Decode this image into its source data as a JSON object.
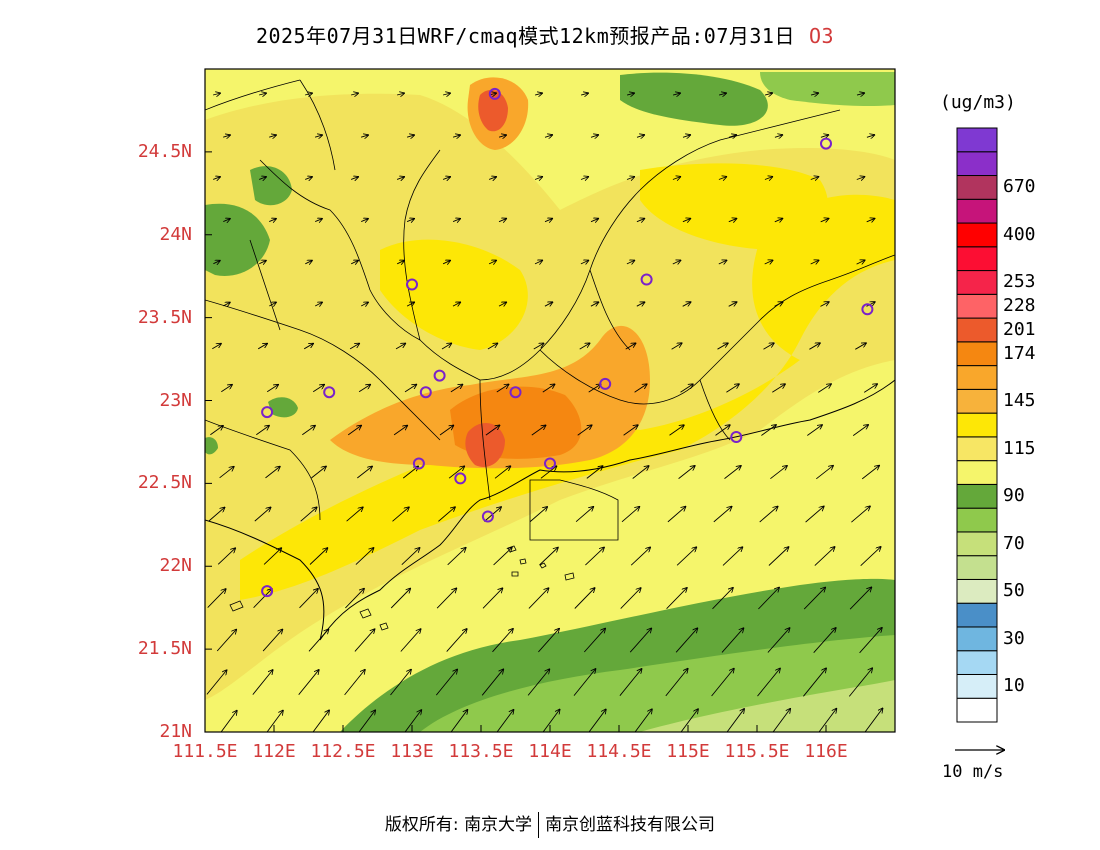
{
  "title": {
    "text": "2025年07月31日WRF/cmaq模式12km预报产品:07月31日",
    "species": "O3"
  },
  "map": {
    "lon_range": [
      111.5,
      116.5
    ],
    "lat_range": [
      21,
      25
    ],
    "lat_ticks": [
      {
        "value": 24.5,
        "label": "24.5N"
      },
      {
        "value": 24,
        "label": "24N"
      },
      {
        "value": 23.5,
        "label": "23.5N"
      },
      {
        "value": 23,
        "label": "23N"
      },
      {
        "value": 22.5,
        "label": "22.5N"
      },
      {
        "value": 22,
        "label": "22N"
      },
      {
        "value": 21.5,
        "label": "21.5N"
      },
      {
        "value": 21,
        "label": "21N"
      }
    ],
    "lon_ticks": [
      {
        "value": 111.5,
        "label": "111.5E"
      },
      {
        "value": 112,
        "label": "112E"
      },
      {
        "value": 112.5,
        "label": "112.5E"
      },
      {
        "value": 113,
        "label": "113E"
      },
      {
        "value": 113.5,
        "label": "113.5E"
      },
      {
        "value": 114,
        "label": "114E"
      },
      {
        "value": 114.5,
        "label": "114.5E"
      },
      {
        "value": 115,
        "label": "115E"
      },
      {
        "value": 115.5,
        "label": "115.5E"
      },
      {
        "value": 116,
        "label": "116E"
      }
    ],
    "background_color": "#f5f56b",
    "stations": [
      {
        "lon": 113.6,
        "lat": 24.85
      },
      {
        "lon": 116.0,
        "lat": 24.55
      },
      {
        "lon": 113.0,
        "lat": 23.7
      },
      {
        "lon": 114.7,
        "lat": 23.73
      },
      {
        "lon": 116.3,
        "lat": 23.55
      },
      {
        "lon": 113.2,
        "lat": 23.15
      },
      {
        "lon": 112.4,
        "lat": 23.05
      },
      {
        "lon": 113.1,
        "lat": 23.05
      },
      {
        "lon": 113.75,
        "lat": 23.05
      },
      {
        "lon": 114.4,
        "lat": 23.1
      },
      {
        "lon": 111.95,
        "lat": 22.93
      },
      {
        "lon": 115.35,
        "lat": 22.78
      },
      {
        "lon": 113.05,
        "lat": 22.62
      },
      {
        "lon": 114.0,
        "lat": 22.62
      },
      {
        "lon": 113.35,
        "lat": 22.53
      },
      {
        "lon": 113.55,
        "lat": 22.3
      },
      {
        "lon": 111.95,
        "lat": 21.85
      }
    ]
  },
  "legend": {
    "units": "(ug/m3)",
    "colors": [
      "#ffffff",
      "#d6eef8",
      "#a5d8f3",
      "#6fb6e0",
      "#4a8fc8",
      "#dcebc0",
      "#c4e08f",
      "#c6e07a",
      "#8fc94c",
      "#64a83a",
      "#f5f56b",
      "#f7e664",
      "#fde706",
      "#f7b23b",
      "#f9a72b",
      "#f58711",
      "#ec5a2c",
      "#fe6366",
      "#f5244a",
      "#fc0e33",
      "#ff0000",
      "#c6147a",
      "#b1345e",
      "#8b2fc9",
      "#7f39d2"
    ],
    "labels": [
      "10",
      "30",
      "50",
      "70",
      "90",
      "115",
      "145",
      "174",
      "201",
      "228",
      "253",
      "400",
      "670"
    ],
    "label_after_box": [
      1,
      3,
      5,
      7,
      9,
      11,
      13,
      15,
      16,
      17,
      18,
      20,
      22
    ]
  },
  "wind_ref": {
    "label": "10 m/s"
  },
  "copyright": {
    "prefix": "版权所有:",
    "org1": "南京大学",
    "org2": "南京创蓝科技有限公司"
  }
}
